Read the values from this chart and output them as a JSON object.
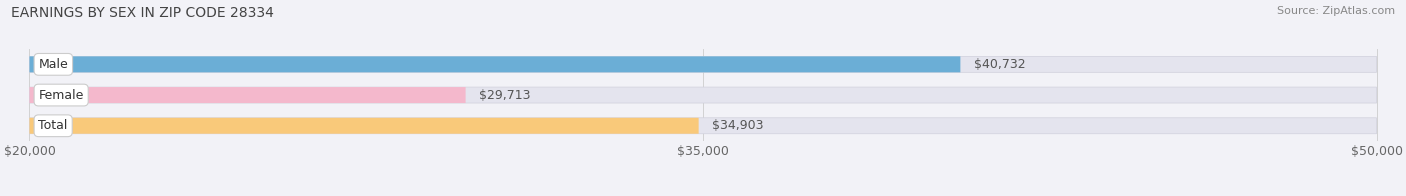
{
  "title": "EARNINGS BY SEX IN ZIP CODE 28334",
  "source": "Source: ZipAtlas.com",
  "categories": [
    "Male",
    "Female",
    "Total"
  ],
  "values": [
    40732,
    29713,
    34903
  ],
  "x_min": 20000,
  "x_max": 50000,
  "xticks": [
    20000,
    35000,
    50000
  ],
  "xtick_labels": [
    "$20,000",
    "$35,000",
    "$50,000"
  ],
  "bar_colors": [
    "#6baed6",
    "#f4b8cc",
    "#f9c97a"
  ],
  "background_color": "#f2f2f7",
  "bar_bg_color": "#e4e4ee",
  "title_fontsize": 10,
  "label_fontsize": 9,
  "value_fontsize": 9,
  "source_fontsize": 8,
  "bar_height": 0.52
}
